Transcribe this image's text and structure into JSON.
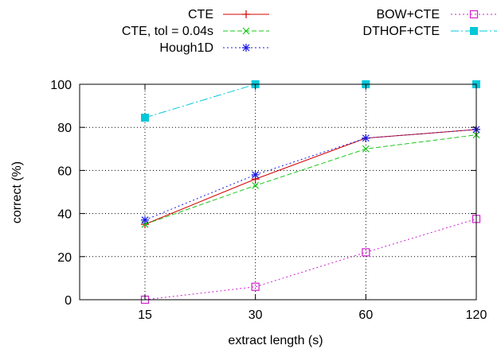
{
  "chart_data": {
    "type": "line",
    "title": "",
    "xlabel": "extract length (s)",
    "ylabel": "correct (%)",
    "categories": [
      "15",
      "30",
      "60",
      "120"
    ],
    "ylim": [
      0,
      100
    ],
    "yticks": [
      0,
      20,
      40,
      60,
      80,
      100
    ],
    "grid": true,
    "legend_position": "top",
    "series": [
      {
        "name": "CTE",
        "color": "#d40000",
        "dash": "solid",
        "marker": "plus",
        "values": [
          35,
          56,
          75,
          79
        ]
      },
      {
        "name": "CTE, tol = 0.04s",
        "color": "#19c819",
        "dash": "dashed",
        "marker": "cross",
        "values": [
          35,
          53,
          70,
          76.5
        ]
      },
      {
        "name": "Hough1D",
        "color": "#1a1ae6",
        "dash": "dotted",
        "marker": "star",
        "values": [
          37,
          58,
          75,
          79
        ]
      },
      {
        "name": "BOW+CTE",
        "color": "#d020d0",
        "dash": "dotted",
        "marker": "open-square",
        "values": [
          0,
          6,
          22,
          37.5
        ]
      },
      {
        "name": "DTHOF+CTE",
        "color": "#00c8d8",
        "dash": "dashdot",
        "marker": "filled-square",
        "values": [
          84.5,
          100,
          100,
          100
        ]
      }
    ]
  }
}
